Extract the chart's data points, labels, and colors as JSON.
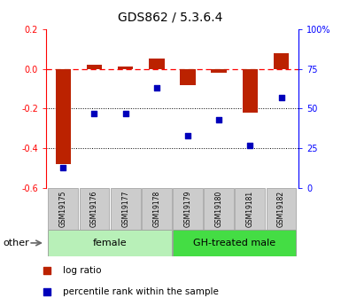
{
  "title": "GDS862 / 5.3.6.4",
  "samples": [
    "GSM19175",
    "GSM19176",
    "GSM19177",
    "GSM19178",
    "GSM19179",
    "GSM19180",
    "GSM19181",
    "GSM19182"
  ],
  "log_ratio": [
    -0.48,
    0.02,
    0.01,
    0.05,
    -0.08,
    -0.02,
    -0.22,
    0.08
  ],
  "percentile": [
    13,
    47,
    47,
    63,
    33,
    43,
    27,
    57
  ],
  "groups": [
    {
      "label": "female",
      "indices": [
        0,
        1,
        2,
        3
      ],
      "color": "#b8f0b8"
    },
    {
      "label": "GH-treated male",
      "indices": [
        4,
        5,
        6,
        7
      ],
      "color": "#44dd44"
    }
  ],
  "ylim_left": [
    -0.6,
    0.2
  ],
  "ylim_right": [
    0,
    100
  ],
  "yticks_left": [
    -0.6,
    -0.4,
    -0.2,
    0.0,
    0.2
  ],
  "yticks_right": [
    0,
    25,
    50,
    75,
    100
  ],
  "ytick_labels_right": [
    "0",
    "25",
    "50",
    "75",
    "100%"
  ],
  "hline_dashed": 0.0,
  "hlines_dotted": [
    -0.2,
    -0.4
  ],
  "bar_color": "#bb2200",
  "dot_color": "#0000bb",
  "bar_width": 0.5,
  "legend_log_ratio": "log ratio",
  "legend_percentile": "percentile rank within the sample",
  "other_label": "other",
  "tick_fontsize": 7,
  "title_fontsize": 10,
  "sample_fontsize": 5.5,
  "group_fontsize": 8,
  "legend_fontsize": 7.5
}
